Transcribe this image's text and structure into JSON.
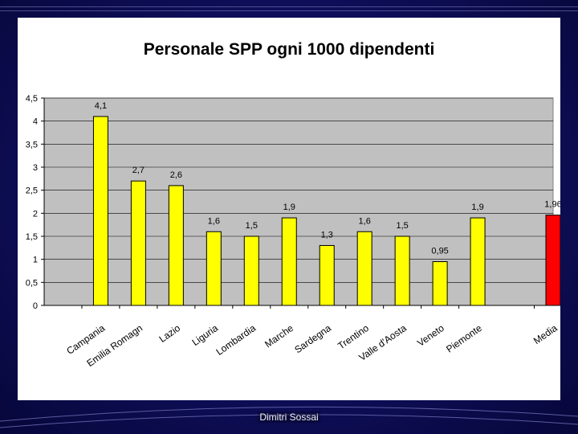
{
  "slide": {
    "footer": "Dimitri Sossai",
    "colors": {
      "background": "#0e0e5a",
      "panel": "#ffffff",
      "plot_area": "#c0c0c0"
    }
  },
  "chart_data": {
    "type": "bar",
    "title": "Personale SPP ogni 1000 dipendenti",
    "xlabel": "",
    "ylabel": "",
    "categories": [
      "Campania",
      "Emilia Romagna",
      "Lazio",
      "Liguria",
      "Lombardia",
      "Marche",
      "Sardegna",
      "Trentino",
      "Valle d'Aosta",
      "Veneto",
      "Piemonte",
      "Media"
    ],
    "categories_shown": [
      "Campania",
      "Emilia Romagn",
      "Lazio",
      "Liguria",
      "Lombardia",
      "Marche",
      "Sardegna",
      "Trentino",
      "Valle d'Aosta",
      "Veneto",
      "Piemonte",
      "Media"
    ],
    "values": [
      4.1,
      2.7,
      2.6,
      1.6,
      1.5,
      1.9,
      1.3,
      1.6,
      1.5,
      0.95,
      1.9,
      1.96
    ],
    "value_labels": [
      "4,1",
      "2,7",
      "2,6",
      "1,6",
      "1,5",
      "1,9",
      "1,3",
      "1,6",
      "1,5",
      "0,95",
      "1,9",
      "1,96"
    ],
    "bar_colors": [
      "#ffff00",
      "#ffff00",
      "#ffff00",
      "#ffff00",
      "#ffff00",
      "#ffff00",
      "#ffff00",
      "#ffff00",
      "#ffff00",
      "#ffff00",
      "#ffff00",
      "#ff0000"
    ],
    "ylim": [
      0,
      4.5
    ],
    "yticks": [
      0,
      0.5,
      1,
      1.5,
      2,
      2.5,
      3,
      3.5,
      4,
      4.5
    ],
    "ytick_labels": [
      "0",
      "0,5",
      "1",
      "1,5",
      "2",
      "2,5",
      "3",
      "3,5",
      "4",
      "4,5"
    ],
    "grid": true,
    "legend": "none"
  }
}
